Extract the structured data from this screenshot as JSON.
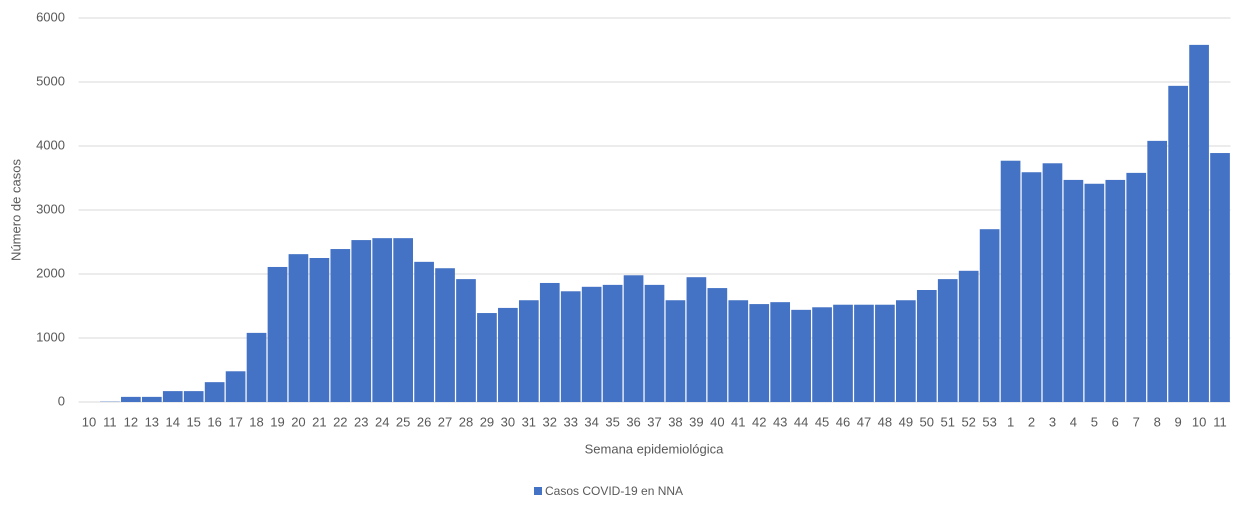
{
  "chart_data": {
    "type": "bar",
    "x_label": "Semana epidemiológica",
    "y_label": "Número de casos",
    "categories": [
      "10",
      "11",
      "12",
      "13",
      "14",
      "15",
      "16",
      "17",
      "18",
      "19",
      "20",
      "21",
      "22",
      "23",
      "24",
      "25",
      "26",
      "27",
      "28",
      "29",
      "30",
      "31",
      "32",
      "33",
      "34",
      "35",
      "36",
      "37",
      "38",
      "39",
      "40",
      "41",
      "42",
      "43",
      "44",
      "45",
      "46",
      "47",
      "48",
      "49",
      "50",
      "51",
      "52",
      "53",
      "1",
      "2",
      "3",
      "4",
      "5",
      "6",
      "7",
      "8",
      "9",
      "10",
      "11"
    ],
    "series": [
      {
        "name": "Casos COVID-19 en NNA",
        "color": "#4472c4",
        "values": [
          0,
          5,
          80,
          80,
          170,
          170,
          310,
          480,
          1080,
          2110,
          2310,
          2250,
          2390,
          2530,
          2560,
          2560,
          2190,
          2090,
          1920,
          1390,
          1470,
          1590,
          1860,
          1730,
          1800,
          1830,
          1980,
          1830,
          1590,
          1950,
          1780,
          1590,
          1530,
          1560,
          1440,
          1480,
          1520,
          1520,
          1520,
          1590,
          1750,
          1920,
          2050,
          2700,
          3770,
          3590,
          3730,
          3470,
          3410,
          3470,
          3580,
          4080,
          4940,
          5580,
          3890
        ]
      }
    ],
    "ylim": [
      0,
      6000
    ],
    "yticks": [
      0,
      1000,
      2000,
      3000,
      4000,
      5000,
      6000
    ],
    "grid": true,
    "legend": "bottom"
  }
}
